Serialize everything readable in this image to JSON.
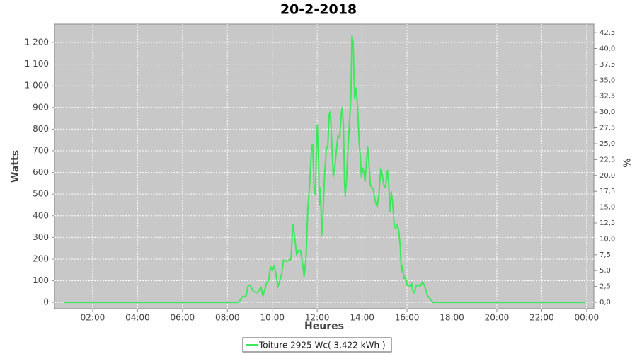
{
  "chart_data": {
    "type": "line",
    "title": "20-2-2018",
    "xlabel": "Heures",
    "ylabel": "Watts",
    "y2label": "%",
    "x": [
      0.74,
      8.5,
      8.667,
      8.833,
      8.917,
      9.0,
      9.167,
      9.333,
      9.5,
      9.583,
      9.75,
      9.833,
      9.917,
      10.0,
      10.083,
      10.167,
      10.25,
      10.417,
      10.5,
      10.667,
      10.75,
      10.833,
      10.917,
      11.0,
      11.083,
      11.167,
      11.25,
      11.333,
      11.417,
      11.5,
      11.583,
      11.667,
      11.75,
      11.8,
      11.867,
      11.917,
      12.0,
      12.05,
      12.1,
      12.15,
      12.2,
      12.25,
      12.333,
      12.417,
      12.467,
      12.533,
      12.583,
      12.667,
      12.717,
      12.8,
      12.917,
      13.0,
      13.083,
      13.117,
      13.167,
      13.217,
      13.25,
      13.3,
      13.367,
      13.433,
      13.5,
      13.55,
      13.6,
      13.667,
      13.733,
      13.8,
      13.867,
      13.917,
      13.967,
      14.033,
      14.083,
      14.133,
      14.2,
      14.25,
      14.3,
      14.367,
      14.5,
      14.583,
      14.667,
      14.75,
      14.833,
      14.883,
      14.967,
      15.033,
      15.133,
      15.2,
      15.25,
      15.3,
      15.367,
      15.433,
      15.5,
      15.567,
      15.633,
      15.7,
      15.75,
      15.8,
      15.867,
      15.933,
      16.0,
      16.133,
      16.2,
      16.267,
      16.333,
      16.417,
      16.583,
      16.7,
      16.8,
      16.917,
      17.033,
      17.167,
      23.917
    ],
    "series": [
      {
        "name": "Toiture 2925 Wc( 3,422 kWh )",
        "color": "#3ee85c",
        "values": [
          0,
          0,
          25,
          30,
          75,
          80,
          50,
          45,
          70,
          30,
          90,
          100,
          165,
          145,
          170,
          130,
          70,
          130,
          195,
          190,
          195,
          200,
          360,
          300,
          220,
          240,
          240,
          190,
          120,
          200,
          430,
          550,
          720,
          730,
          510,
          500,
          820,
          700,
          450,
          530,
          310,
          380,
          600,
          720,
          710,
          870,
          880,
          700,
          580,
          640,
          770,
          760,
          880,
          900,
          820,
          550,
          490,
          560,
          700,
          820,
          950,
          1230,
          1200,
          940,
          990,
          900,
          740,
          680,
          580,
          620,
          600,
          560,
          660,
          720,
          650,
          540,
          520,
          470,
          440,
          500,
          620,
          600,
          540,
          530,
          610,
          520,
          420,
          510,
          450,
          350,
          340,
          360,
          330,
          260,
          140,
          170,
          110,
          120,
          80,
          75,
          90,
          50,
          45,
          80,
          75,
          95,
          70,
          30,
          15,
          0,
          0
        ]
      }
    ],
    "xlim": [
      0.3,
      24.32
    ],
    "xticks": [
      {
        "value": 2,
        "label": "02:00"
      },
      {
        "value": 4,
        "label": "04:00"
      },
      {
        "value": 6,
        "label": "06:00"
      },
      {
        "value": 8,
        "label": "08:00"
      },
      {
        "value": 10,
        "label": "10:00"
      },
      {
        "value": 12,
        "label": "12:00"
      },
      {
        "value": 14,
        "label": "14:00"
      },
      {
        "value": 16,
        "label": "16:00"
      },
      {
        "value": 18,
        "label": "18:00"
      },
      {
        "value": 20,
        "label": "20:00"
      },
      {
        "value": 22,
        "label": "22:00"
      },
      {
        "value": 24,
        "label": "00:00"
      }
    ],
    "ylim": [
      -29,
      1285
    ],
    "yticks": [
      0,
      100,
      200,
      300,
      400,
      500,
      600,
      700,
      800,
      900,
      {
        "value": 1000,
        "label": "1 000"
      },
      {
        "value": 1100,
        "label": "1 100"
      },
      {
        "value": 1200,
        "label": "1 200"
      }
    ],
    "y2lim": [
      -1.0,
      43.85
    ],
    "y2ticks": [
      {
        "value": 0,
        "label": "0,0"
      },
      {
        "value": 2.5,
        "label": "2,5"
      },
      {
        "value": 5,
        "label": "5,0"
      },
      {
        "value": 7.5,
        "label": "7,5"
      },
      {
        "value": 10,
        "label": "10,0"
      },
      {
        "value": 12.5,
        "label": "12,5"
      },
      {
        "value": 15,
        "label": "15,0"
      },
      {
        "value": 17.5,
        "label": "17,5"
      },
      {
        "value": 20,
        "label": "20,0"
      },
      {
        "value": 22.5,
        "label": "22,5"
      },
      {
        "value": 25,
        "label": "25,0"
      },
      {
        "value": 27.5,
        "label": "27,5"
      },
      {
        "value": 30,
        "label": "30,0"
      },
      {
        "value": 32.5,
        "label": "32,5"
      },
      {
        "value": 35,
        "label": "35,0"
      },
      {
        "value": 37.5,
        "label": "37,5"
      },
      {
        "value": 40,
        "label": "40,0"
      },
      {
        "value": 42.5,
        "label": "42,5"
      }
    ],
    "grid": true,
    "legend": "bottom"
  }
}
